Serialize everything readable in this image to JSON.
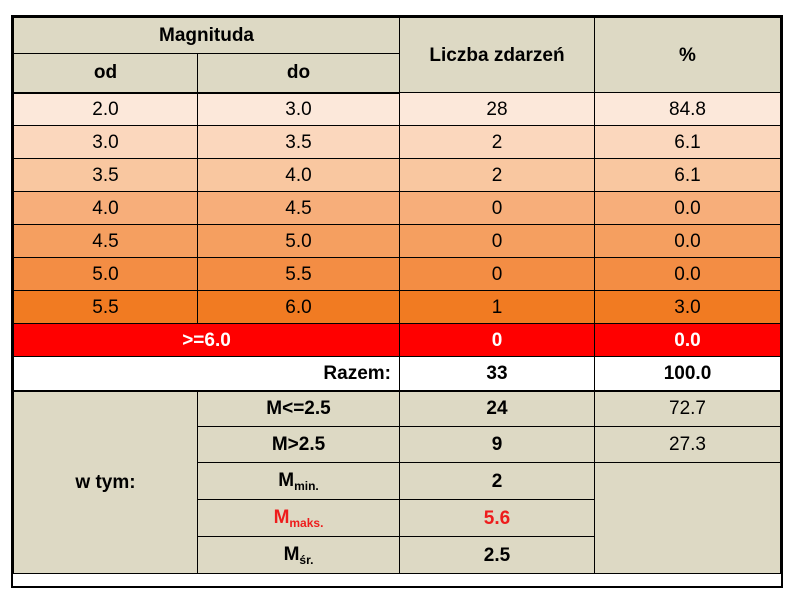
{
  "header": {
    "magnitude": "Magnituda",
    "from": "od",
    "to": "do",
    "count": "Liczba zdarzeń",
    "percent": "%"
  },
  "rows": [
    {
      "from": "2.0",
      "to": "3.0",
      "count": "28",
      "percent": "84.8"
    },
    {
      "from": "3.0",
      "to": "3.5",
      "count": "2",
      "percent": "6.1"
    },
    {
      "from": "3.5",
      "to": "4.0",
      "count": "2",
      "percent": "6.1"
    },
    {
      "from": "4.0",
      "to": "4.5",
      "count": "0",
      "percent": "0.0"
    },
    {
      "from": "4.5",
      "to": "5.0",
      "count": "0",
      "percent": "0.0"
    },
    {
      "from": "5.0",
      "to": "5.5",
      "count": "0",
      "percent": "0.0"
    },
    {
      "from": "5.5",
      "to": "6.0",
      "count": "1",
      "percent": "3.0"
    }
  ],
  "max_row": {
    "label": ">=6.0",
    "count": "0",
    "percent": "0.0"
  },
  "total": {
    "label": "Razem:",
    "count": "33",
    "percent": "100.0"
  },
  "subset": {
    "label": "w tym:",
    "items": [
      {
        "main": "M<=2.5",
        "count": "24",
        "percent": "72.7"
      },
      {
        "main": "M>2.5",
        "count": "9",
        "percent": "27.3"
      },
      {
        "main": "M",
        "sub": "min.",
        "count": "2"
      },
      {
        "main": "M",
        "sub": "maks.",
        "count": "5.6"
      },
      {
        "main": "M",
        "sub": "śr.",
        "count": "2.5"
      }
    ]
  },
  "colors": {
    "header_bg": "#ddd9c4",
    "max_row_bg": "#ff0000",
    "max_value_text": "#ee1c1c"
  }
}
